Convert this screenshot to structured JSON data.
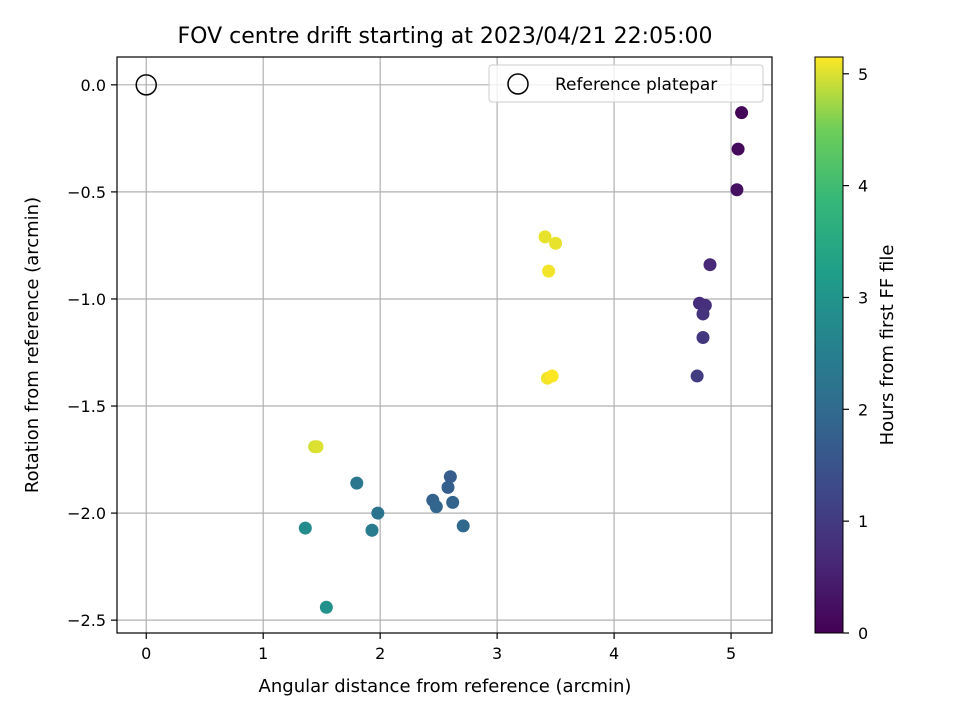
{
  "chart_data": {
    "type": "scatter",
    "title": "FOV centre drift starting at 2023/04/21 22:05:00",
    "xlabel": "Angular distance from reference (arcmin)",
    "ylabel": "Rotation from reference (arcmin)",
    "xlim": [
      -0.25,
      5.35
    ],
    "ylim": [
      -2.56,
      0.13
    ],
    "xticks": [
      0,
      1,
      2,
      3,
      4,
      5
    ],
    "xtick_labels": [
      "0",
      "1",
      "2",
      "3",
      "4",
      "5"
    ],
    "yticks": [
      0.0,
      -0.5,
      -1.0,
      -1.5,
      -2.0,
      -2.5
    ],
    "ytick_labels": [
      "0.0",
      "−0.5",
      "−1.0",
      "−1.5",
      "−2.0",
      "−2.5"
    ],
    "grid": true,
    "legend": {
      "location": "top-right",
      "entries": [
        {
          "label": "Reference platepar",
          "marker": "hollow-circle"
        }
      ]
    },
    "reference_point": {
      "x": 0.0,
      "y": 0.0
    },
    "colorbar": {
      "label": "Hours from first FF file",
      "range": [
        0,
        5.15
      ],
      "ticks": [
        0,
        1,
        2,
        3,
        4,
        5
      ],
      "tick_labels": [
        "0",
        "1",
        "2",
        "3",
        "4",
        "5"
      ],
      "colormap": "viridis"
    },
    "points": [
      {
        "x": 5.09,
        "y": -0.13,
        "c": 0.05
      },
      {
        "x": 5.06,
        "y": -0.3,
        "c": 0.15
      },
      {
        "x": 5.05,
        "y": -0.49,
        "c": 0.25
      },
      {
        "x": 4.82,
        "y": -0.84,
        "c": 0.65
      },
      {
        "x": 4.73,
        "y": -1.02,
        "c": 0.75
      },
      {
        "x": 4.78,
        "y": -1.03,
        "c": 0.8
      },
      {
        "x": 4.76,
        "y": -1.07,
        "c": 0.85
      },
      {
        "x": 4.76,
        "y": -1.18,
        "c": 0.95
      },
      {
        "x": 4.71,
        "y": -1.36,
        "c": 1.05
      },
      {
        "x": 2.6,
        "y": -1.83,
        "c": 1.7
      },
      {
        "x": 2.58,
        "y": -1.88,
        "c": 1.75
      },
      {
        "x": 2.45,
        "y": -1.94,
        "c": 1.8
      },
      {
        "x": 2.62,
        "y": -1.95,
        "c": 1.85
      },
      {
        "x": 2.48,
        "y": -1.97,
        "c": 1.9
      },
      {
        "x": 2.71,
        "y": -2.06,
        "c": 1.95
      },
      {
        "x": 1.98,
        "y": -2.0,
        "c": 2.2
      },
      {
        "x": 1.8,
        "y": -1.86,
        "c": 2.3
      },
      {
        "x": 1.93,
        "y": -2.08,
        "c": 2.4
      },
      {
        "x": 1.36,
        "y": -2.07,
        "c": 2.8
      },
      {
        "x": 1.54,
        "y": -2.44,
        "c": 2.9
      },
      {
        "x": 1.44,
        "y": -1.69,
        "c": 4.95
      },
      {
        "x": 1.46,
        "y": -1.69,
        "c": 5.0
      },
      {
        "x": 3.41,
        "y": -0.71,
        "c": 5.05
      },
      {
        "x": 3.5,
        "y": -0.74,
        "c": 5.05
      },
      {
        "x": 3.44,
        "y": -0.87,
        "c": 5.1
      },
      {
        "x": 3.43,
        "y": -1.37,
        "c": 5.1
      },
      {
        "x": 3.47,
        "y": -1.36,
        "c": 5.15
      }
    ]
  }
}
